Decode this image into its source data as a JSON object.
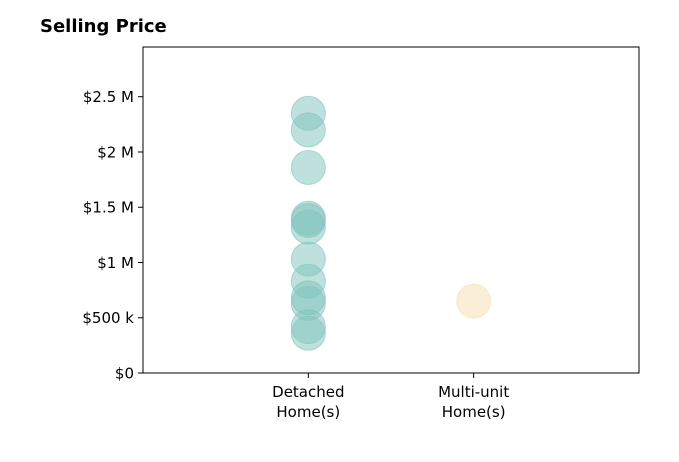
{
  "chart_data": {
    "type": "scatter",
    "title": "Selling Price",
    "xlabel": "",
    "ylabel": "",
    "categories": [
      "Detached\nHome(s)",
      "Multi-unit\nHome(s)"
    ],
    "y_ticks": [
      {
        "value": 0,
        "label": "$0"
      },
      {
        "value": 500000,
        "label": "$500 k"
      },
      {
        "value": 1000000,
        "label": "$1 M"
      },
      {
        "value": 1500000,
        "label": "$1.5 M"
      },
      {
        "value": 2000000,
        "label": "$2 M"
      },
      {
        "value": 2500000,
        "label": "$2.5 M"
      }
    ],
    "ylim": [
      0,
      2950000
    ],
    "xlim": [
      -1,
      2
    ],
    "grid": false,
    "series": [
      {
        "category": "Detached\nHome(s)",
        "color": "#7fc4bb",
        "values": [
          2350000,
          2200000,
          1860000,
          1400000,
          1380000,
          1320000,
          1030000,
          830000,
          680000,
          630000,
          420000,
          360000
        ]
      },
      {
        "category": "Multi-unit\nHome(s)",
        "color": "#f5deb0",
        "values": [
          650000
        ]
      }
    ]
  }
}
